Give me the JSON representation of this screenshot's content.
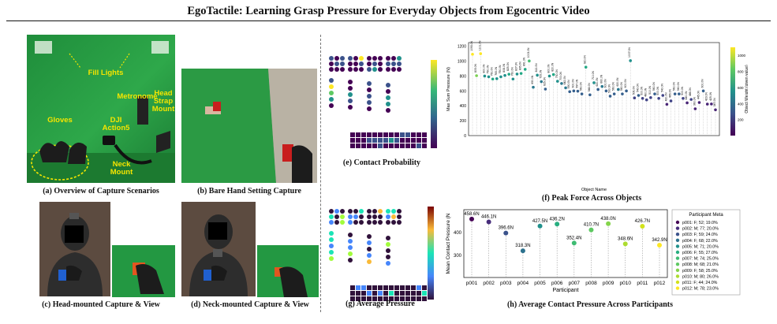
{
  "title": "EgoTactile: Learning Grasp Pressure for Everyday Objects from Egocentric Video",
  "panels": {
    "a": {
      "caption": "(a) Overview of Capture Scenarios",
      "labels": {
        "fill_lights": "Fill Lights",
        "metronome": "Metronome",
        "head_strap": "Head\nStrap\nMount",
        "dji": "DJI\nAction5",
        "gloves": "Gloves",
        "neck": "Neck\nMount"
      }
    },
    "b": {
      "caption": "(b) Bare Hand Setting Capture"
    },
    "c": {
      "caption": "(c) Head-mounted Capture & View"
    },
    "d": {
      "caption": "(d) Neck-mounted Capture & View"
    },
    "e": {
      "caption": "(e) Contact Probability"
    },
    "f": {
      "caption": "(f) Peak Force Across Objects"
    },
    "g": {
      "caption": "(g) Average Pressure"
    },
    "h": {
      "caption": "(h) Average Contact Pressure Across Participants"
    }
  },
  "colors": {
    "green_screen": "#2ea84a",
    "annotation": "#f5e500",
    "glove": "#1c1c1c"
  },
  "chart_data": [
    {
      "type": "scatter",
      "id": "peak_force",
      "xlabel": "Object Name",
      "ylabel": "Max Sum Pressure (N)",
      "colorbar_label": "Object Weight (given value)",
      "ylim": [
        0,
        1250
      ],
      "yticks": [
        0,
        200,
        400,
        600,
        800,
        1000,
        1200
      ],
      "colorbar_ticks": [
        200,
        400,
        600,
        800,
        1000
      ],
      "values": [
        1093,
        805,
        1101,
        800,
        790,
        760,
        765,
        790,
        808,
        825,
        760,
        827,
        835,
        891,
        1003,
        650,
        812,
        725,
        625,
        800,
        820,
        730,
        700,
        642,
        590,
        600,
        597,
        560,
        920,
        548,
        710,
        620,
        660,
        600,
        530,
        560,
        620,
        560,
        600,
        1007,
        506,
        540,
        500,
        480,
        510,
        560,
        500,
        540,
        420,
        465,
        560,
        560,
        500,
        440,
        486,
        360,
        445,
        600,
        423,
        425,
        347
      ],
      "weights": [
        1050,
        900,
        1050,
        600,
        560,
        620,
        560,
        580,
        600,
        650,
        500,
        600,
        640,
        700,
        800,
        400,
        560,
        480,
        380,
        600,
        640,
        500,
        460,
        420,
        360,
        380,
        360,
        320,
        700,
        300,
        500,
        380,
        420,
        360,
        300,
        320,
        400,
        300,
        360,
        600,
        260,
        300,
        240,
        220,
        240,
        280,
        240,
        260,
        160,
        200,
        300,
        300,
        220,
        160,
        200,
        120,
        160,
        280,
        140,
        150,
        100
      ],
      "grid": true
    },
    {
      "type": "scatter",
      "id": "avg_pressure_participants",
      "xlabel": "Participant",
      "ylabel": "Mean Contact Pressure (N",
      "ylim": [
        200,
        500
      ],
      "yticks": [
        300,
        400
      ],
      "categories": [
        "p001",
        "p002",
        "p003",
        "p004",
        "p005",
        "p006",
        "p007",
        "p008",
        "p009",
        "p010",
        "p011",
        "p012"
      ],
      "values": [
        458.6,
        446.1,
        396.6,
        318.3,
        427.5,
        436.2,
        352.4,
        410.7,
        438.0,
        348.6,
        426.7,
        342.9
      ],
      "data_labels": [
        "458.6N",
        "446.1N",
        "396.6N",
        "318.3N",
        "427.5N",
        "436.2N",
        "352.4N",
        "410.7N",
        "438.0N",
        "348.6N",
        "426.7N",
        "342.9N"
      ],
      "colors": [
        "#440154",
        "#472d7b",
        "#3b528b",
        "#2c728e",
        "#21918c",
        "#28ae80",
        "#3fbc73",
        "#5ec962",
        "#84d44b",
        "#addc30",
        "#d2e21b",
        "#fde725"
      ],
      "legend": {
        "title": "Participant Meta",
        "placement": "right",
        "entries": [
          "p001: F; 52; 19.0%",
          "p002: M; 77; 20.0%",
          "p003: F; 59; 24.0%",
          "p004: F; 68; 22.0%",
          "p005: M; 71; 20.0%",
          "p006: F; 55; 27.0%",
          "p007: M; 74; 25.0%",
          "p008: M; 68; 21.0%",
          "p009: F; 58; 25.0%",
          "p010: M; 80; 26.0%",
          "p011: F; 44; 24.0%",
          "p012: M; 78; 23.0%"
        ]
      }
    }
  ]
}
